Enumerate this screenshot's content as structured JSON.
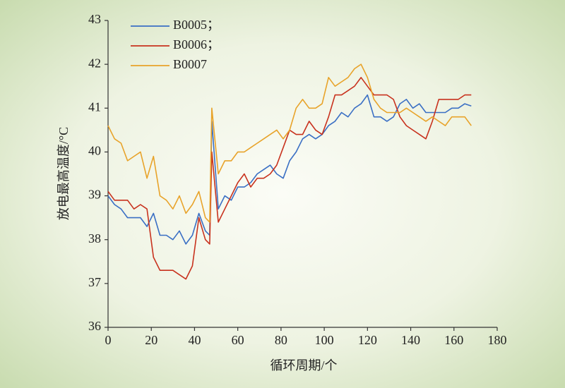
{
  "chart_data": {
    "type": "line",
    "xlabel": "循环周期/个",
    "ylabel": "放电最高温度/°C",
    "x": [
      0,
      3,
      6,
      9,
      12,
      15,
      18,
      21,
      24,
      27,
      30,
      33,
      36,
      39,
      42,
      45,
      47,
      48,
      51,
      54,
      57,
      60,
      63,
      66,
      69,
      72,
      75,
      78,
      81,
      84,
      87,
      90,
      93,
      96,
      99,
      102,
      105,
      108,
      111,
      114,
      117,
      120,
      123,
      126,
      129,
      132,
      135,
      138,
      141,
      144,
      147,
      150,
      153,
      156,
      159,
      162,
      165,
      168
    ],
    "series": [
      {
        "name": "B0005；",
        "color": "#3a6fc4",
        "values": [
          39.0,
          38.8,
          38.7,
          38.5,
          38.5,
          38.5,
          38.3,
          38.6,
          38.1,
          38.1,
          38.0,
          38.2,
          37.9,
          38.1,
          38.6,
          38.2,
          38.1,
          40.7,
          38.7,
          39.0,
          38.9,
          39.2,
          39.2,
          39.3,
          39.5,
          39.6,
          39.7,
          39.5,
          39.4,
          39.8,
          40.0,
          40.3,
          40.4,
          40.3,
          40.4,
          40.6,
          40.7,
          40.9,
          40.8,
          41.0,
          41.1,
          41.3,
          40.8,
          40.8,
          40.7,
          40.8,
          41.1,
          41.2,
          41.0,
          41.1,
          40.9,
          40.9,
          40.9,
          40.9,
          41.0,
          41.0,
          41.1,
          41.05
        ]
      },
      {
        "name": "B0006；",
        "color": "#c8321e",
        "values": [
          39.1,
          38.9,
          38.9,
          38.9,
          38.7,
          38.8,
          38.7,
          37.6,
          37.3,
          37.3,
          37.3,
          37.2,
          37.1,
          37.4,
          38.5,
          38.0,
          37.9,
          40.0,
          38.4,
          38.7,
          39.0,
          39.3,
          39.5,
          39.2,
          39.4,
          39.4,
          39.5,
          39.7,
          40.1,
          40.5,
          40.4,
          40.4,
          40.7,
          40.5,
          40.4,
          40.8,
          41.3,
          41.3,
          41.4,
          41.5,
          41.7,
          41.5,
          41.3,
          41.3,
          41.3,
          41.2,
          40.8,
          40.6,
          40.5,
          40.4,
          40.3,
          40.7,
          41.2,
          41.2,
          41.2,
          41.2,
          41.3,
          41.3
        ]
      },
      {
        "name": "B0007",
        "color": "#e8a32a",
        "values": [
          40.6,
          40.3,
          40.2,
          39.8,
          39.9,
          40.0,
          39.4,
          39.9,
          39.0,
          38.9,
          38.7,
          39.0,
          38.6,
          38.8,
          39.1,
          38.5,
          38.4,
          41.0,
          39.5,
          39.8,
          39.8,
          40.0,
          40.0,
          40.1,
          40.2,
          40.3,
          40.4,
          40.5,
          40.3,
          40.5,
          41.0,
          41.2,
          41.0,
          41.0,
          41.1,
          41.7,
          41.5,
          41.6,
          41.7,
          41.9,
          42.0,
          41.7,
          41.2,
          41.0,
          40.9,
          40.9,
          40.9,
          41.0,
          40.9,
          40.8,
          40.7,
          40.8,
          40.7,
          40.6,
          40.8,
          40.8,
          40.8,
          40.6
        ]
      }
    ],
    "xlim": [
      0,
      180
    ],
    "xticks": [
      0,
      20,
      40,
      60,
      80,
      100,
      120,
      140,
      160,
      180
    ],
    "ylim": [
      36,
      43
    ],
    "yticks": [
      36,
      37,
      38,
      39,
      40,
      41,
      42,
      43
    ],
    "legend": "upper left"
  }
}
